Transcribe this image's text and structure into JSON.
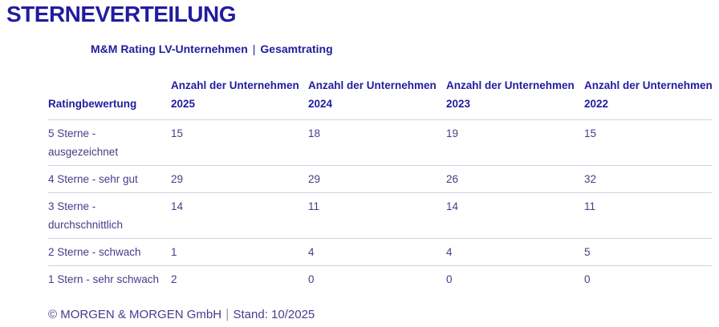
{
  "header": {
    "title": "STERNEVERTEILUNG",
    "subtitle_left": "M&M Rating LV-Unternehmen",
    "subtitle_separator": "|",
    "subtitle_right": "Gesamtrating"
  },
  "table": {
    "header": {
      "col0": "Ratingbewertung",
      "measure_label": "Anzahl der Unternehmen",
      "years": [
        "2025",
        "2024",
        "2023",
        "2022"
      ]
    },
    "rows": [
      {
        "label": "5 Sterne - ausgezeichnet",
        "values": [
          "15",
          "18",
          "19",
          "15"
        ]
      },
      {
        "label": "4 Sterne - sehr gut",
        "values": [
          "29",
          "29",
          "26",
          "32"
        ]
      },
      {
        "label": "3 Sterne - durchschnittlich",
        "values": [
          "14",
          "11",
          "14",
          "11"
        ]
      },
      {
        "label": "2 Sterne - schwach",
        "values": [
          "1",
          "4",
          "4",
          "5"
        ]
      },
      {
        "label": "1 Stern - sehr schwach",
        "values": [
          "2",
          "0",
          "0",
          "0"
        ]
      }
    ]
  },
  "footer": {
    "copyright": "© MORGEN & MORGEN GmbH",
    "separator": "|",
    "stand": "Stand: 10/2025"
  },
  "colors": {
    "heading": "#221c9e",
    "body_text": "#423e8a",
    "divider": "#ccd4e2",
    "footer_text": "#443e8c",
    "footer_separator": "#99a0b5",
    "background": "#ffffff"
  },
  "chart_data": {
    "type": "table",
    "title": "STERNEVERTEILUNG",
    "subtitle": "M&M Rating LV-Unternehmen | Gesamtrating",
    "columns": [
      "Ratingbewertung",
      "Anzahl der Unternehmen 2025",
      "Anzahl der Unternehmen 2024",
      "Anzahl der Unternehmen 2023",
      "Anzahl der Unternehmen 2022"
    ],
    "rows": [
      [
        "5 Sterne - ausgezeichnet",
        15,
        18,
        19,
        15
      ],
      [
        "4 Sterne - sehr gut",
        29,
        29,
        26,
        32
      ],
      [
        "3 Sterne - durchschnittlich",
        14,
        11,
        14,
        11
      ],
      [
        "2 Sterne - schwach",
        1,
        4,
        4,
        5
      ],
      [
        "1 Stern - sehr schwach",
        2,
        0,
        0,
        0
      ]
    ],
    "footnote": "© MORGEN & MORGEN GmbH | Stand: 10/2025"
  }
}
